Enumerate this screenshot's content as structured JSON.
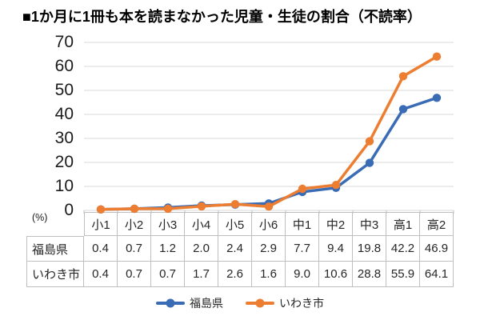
{
  "title": "■1か月に1冊も本を読まなかった児童・生徒の割合（不読率）",
  "chart_data": {
    "type": "line",
    "categories": [
      "小1",
      "小2",
      "小3",
      "小4",
      "小5",
      "小6",
      "中1",
      "中2",
      "中3",
      "高1",
      "高2"
    ],
    "series": [
      {
        "name": "福島県",
        "color": "#3a6cb5",
        "values": [
          0.4,
          0.7,
          1.2,
          2.0,
          2.4,
          2.9,
          7.7,
          9.4,
          19.8,
          42.2,
          46.9
        ]
      },
      {
        "name": "いわき市",
        "color": "#ed7d31",
        "values": [
          0.4,
          0.7,
          0.7,
          1.7,
          2.6,
          1.6,
          9.0,
          10.6,
          28.8,
          55.9,
          64.1
        ]
      }
    ],
    "ylabel": "(%)",
    "ylim": [
      0,
      70
    ],
    "yticks": [
      0,
      10,
      20,
      30,
      40,
      50,
      60,
      70
    ],
    "grid": true,
    "gridline_color": "#d9d9d9",
    "axis_tick_color": "#bfbfbf",
    "table_border_color": "#bfbfbf",
    "legend_position": "bottom",
    "marker": "circle"
  }
}
